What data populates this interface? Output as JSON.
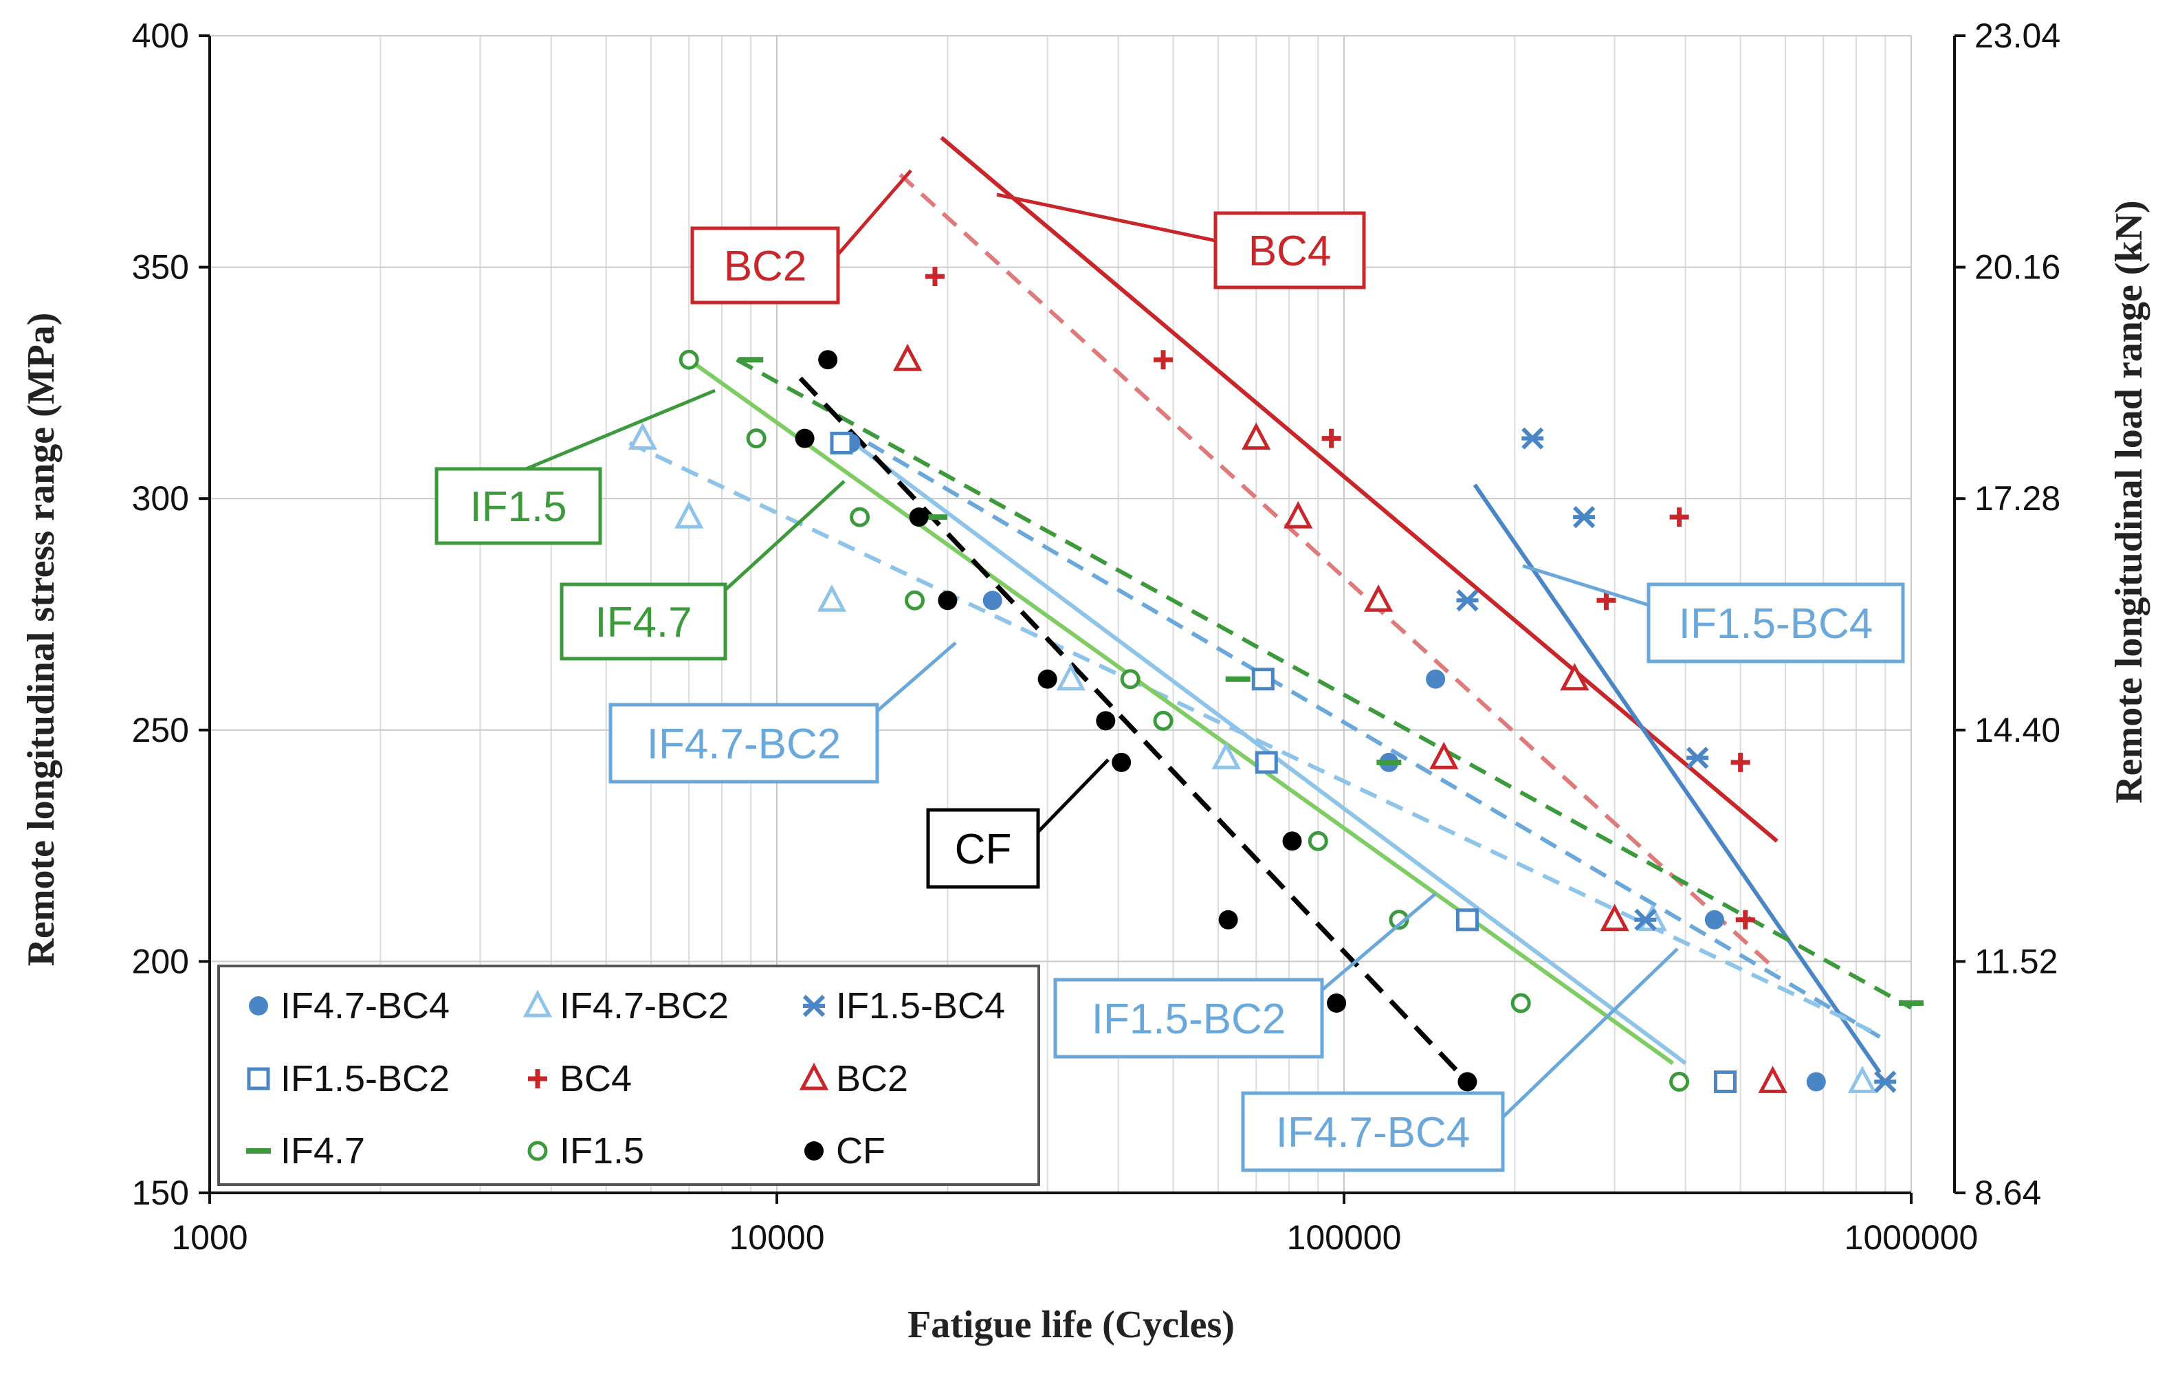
{
  "chart_data": {
    "type": "scatter",
    "title": "",
    "xlabel": "Fatigue life (Cycles)",
    "ylabel": "Remote longitudinal stress range (MPa)",
    "y2label": "Remote longitudinal load range (kN)",
    "xscale": "log",
    "xlim": [
      1000,
      1000000
    ],
    "ylim": [
      150,
      400
    ],
    "x_ticks": [
      "1000",
      "10000",
      "100000",
      "1000000"
    ],
    "y_ticks": [
      "150",
      "200",
      "250",
      "300",
      "350",
      "400"
    ],
    "y2_ticks": [
      "8.64",
      "11.52",
      "14.40",
      "17.28",
      "20.16",
      "23.04"
    ],
    "grid": true,
    "legend_position": "bottom-left",
    "colors": {
      "blue_dark": "#4a86c5",
      "blue_light": "#8ec3ea",
      "red": "#c8262a",
      "red_light": "#e07a7a",
      "green": "#3c9a3c",
      "green_light": "#7fcc63",
      "black": "#000000"
    },
    "series": [
      {
        "name": "IF4.7-BC4",
        "marker": "filled-circle",
        "color": "#4a86c5",
        "points": [
          [
            13500,
            312
          ],
          [
            24000,
            278
          ],
          [
            145000,
            261
          ],
          [
            120000,
            243
          ],
          [
            450000,
            209
          ],
          [
            680000,
            174
          ]
        ]
      },
      {
        "name": "IF4.7-BC2",
        "marker": "open-triangle",
        "color": "#8ec3ea",
        "points": [
          [
            5800,
            313
          ],
          [
            7000,
            296
          ],
          [
            12500,
            278
          ],
          [
            33000,
            261
          ],
          [
            62000,
            244
          ],
          [
            350000,
            209
          ],
          [
            820000,
            174
          ]
        ]
      },
      {
        "name": "IF1.5-BC4",
        "marker": "x-star",
        "color": "#4a86c5",
        "points": [
          [
            215000,
            313
          ],
          [
            265000,
            296
          ],
          [
            165000,
            278
          ],
          [
            420000,
            244
          ],
          [
            340000,
            209
          ],
          [
            900000,
            174
          ]
        ]
      },
      {
        "name": "IF1.5-BC2",
        "marker": "open-square",
        "color": "#4a86c5",
        "points": [
          [
            13000,
            312
          ],
          [
            72000,
            261
          ],
          [
            73000,
            243
          ],
          [
            165000,
            209
          ],
          [
            470000,
            174
          ]
        ]
      },
      {
        "name": "BC4",
        "marker": "plus",
        "color": "#c8262a",
        "points": [
          [
            19000,
            348
          ],
          [
            48000,
            330
          ],
          [
            95000,
            313
          ],
          [
            390000,
            296
          ],
          [
            290000,
            278
          ],
          [
            500000,
            243
          ],
          [
            510000,
            209
          ]
        ]
      },
      {
        "name": "BC2",
        "marker": "open-triangle",
        "color": "#c8262a",
        "points": [
          [
            17000,
            330
          ],
          [
            70000,
            313
          ],
          [
            83000,
            296
          ],
          [
            115000,
            278
          ],
          [
            150000,
            244
          ],
          [
            255000,
            261
          ],
          [
            300000,
            209
          ],
          [
            570000,
            174
          ]
        ]
      },
      {
        "name": "IF4.7",
        "marker": "dash",
        "color": "#3c9a3c",
        "points": [
          [
            9000,
            330
          ],
          [
            19000,
            296
          ],
          [
            65000,
            261
          ],
          [
            120000,
            243
          ],
          [
            1000000,
            191
          ]
        ]
      },
      {
        "name": "IF1.5",
        "marker": "open-circle",
        "color": "#3c9a3c",
        "points": [
          [
            7000,
            330
          ],
          [
            9200,
            313
          ],
          [
            14000,
            296
          ],
          [
            17500,
            278
          ],
          [
            42000,
            261
          ],
          [
            48000,
            252
          ],
          [
            90000,
            226
          ],
          [
            125000,
            209
          ],
          [
            205000,
            191
          ],
          [
            390000,
            174
          ]
        ]
      },
      {
        "name": "CF",
        "marker": "filled-circle",
        "color": "#000000",
        "points": [
          [
            12300,
            330
          ],
          [
            11200,
            313
          ],
          [
            17800,
            296
          ],
          [
            20000,
            278
          ],
          [
            30000,
            261
          ],
          [
            38000,
            252
          ],
          [
            40500,
            243
          ],
          [
            81000,
            226
          ],
          [
            62500,
            209
          ],
          [
            97000,
            191
          ],
          [
            165000,
            174
          ]
        ]
      }
    ],
    "fit_lines": [
      {
        "name": "BC4",
        "color": "#c8262a",
        "style": "solid",
        "from": [
          19500,
          378
        ],
        "to": [
          580000,
          226
        ]
      },
      {
        "name": "BC2",
        "color": "#e07a7a",
        "style": "dashed",
        "from": [
          16500,
          370
        ],
        "to": [
          580000,
          198
        ]
      },
      {
        "name": "IF1.5-BC4",
        "color": "#4a86c5",
        "style": "solid",
        "from": [
          170000,
          303
        ],
        "to": [
          880000,
          176
        ]
      },
      {
        "name": "IF4.7-BC4",
        "color": "#8ec3ea",
        "style": "solid",
        "from": [
          13000,
          314
        ],
        "to": [
          400000,
          178
        ]
      },
      {
        "name": "IF1.5-BC2",
        "color": "#6aa8dc",
        "style": "dashed",
        "from": [
          14500,
          312
        ],
        "to": [
          900000,
          183
        ]
      },
      {
        "name": "IF4.7-BC2",
        "color": "#8ec3ea",
        "style": "dashed",
        "from": [
          5500,
          312
        ],
        "to": [
          850000,
          185
        ]
      },
      {
        "name": "IF4.7",
        "color": "#3c9a3c",
        "style": "dashed",
        "from": [
          8500,
          330
        ],
        "to": [
          1000000,
          190
        ]
      },
      {
        "name": "IF1.5",
        "color": "#7fcc63",
        "style": "solid",
        "from": [
          7000,
          330
        ],
        "to": [
          380000,
          178
        ]
      },
      {
        "name": "CF",
        "color": "#000000",
        "style": "dashed",
        "from": [
          11000,
          326
        ],
        "to": [
          165000,
          174
        ]
      }
    ],
    "callouts": [
      {
        "label": "BC2",
        "color": "#c8262a"
      },
      {
        "label": "BC4",
        "color": "#c8262a"
      },
      {
        "label": "IF1.5",
        "color": "#3c9a3c"
      },
      {
        "label": "IF4.7",
        "color": "#3c9a3c"
      },
      {
        "label": "IF4.7-BC2",
        "color": "#6aa8dc"
      },
      {
        "label": "CF",
        "color": "#000000"
      },
      {
        "label": "IF1.5-BC4",
        "color": "#6aa8dc"
      },
      {
        "label": "IF1.5-BC2",
        "color": "#6aa8dc"
      },
      {
        "label": "IF4.7-BC4",
        "color": "#6aa8dc"
      }
    ],
    "legend": [
      "IF4.7-BC4",
      "IF4.7-BC2",
      "IF1.5-BC4",
      "IF1.5-BC2",
      "BC4",
      "BC2",
      "IF4.7",
      "IF1.5",
      "CF"
    ]
  }
}
